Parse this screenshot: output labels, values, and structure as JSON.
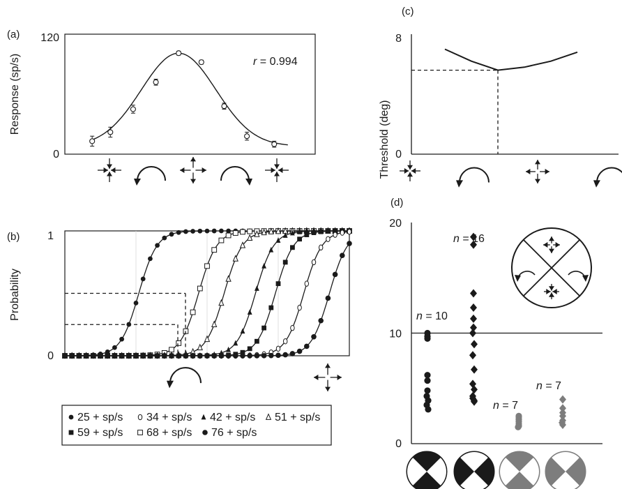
{
  "chart_data": [
    {
      "type": "line",
      "panel_label": "(a)",
      "ylabel": "Response (sp/s)",
      "ylim": [
        0,
        120
      ],
      "yticks": [
        "0",
        "120"
      ],
      "annotation": {
        "prefix": "r",
        "text": " = 0.994"
      },
      "x_icons": [
        "contraction",
        "counter-clockwise rotation",
        "expansion",
        "clockwise rotation",
        "contraction"
      ],
      "x": [
        0.5,
        1,
        1.5,
        2,
        2.5,
        3,
        3.5,
        4,
        4.5,
        5,
        5.5
      ],
      "series": [
        {
          "kind": "points",
          "x": [
            1.1,
            1.5,
            2,
            2.5,
            3,
            3.5,
            4,
            4.5,
            5.1
          ],
          "y": [
            13,
            22,
            45,
            72,
            101,
            92,
            48,
            18,
            10
          ],
          "err": [
            5,
            5,
            4,
            3,
            2,
            2,
            3,
            4,
            3
          ]
        },
        {
          "kind": "fit",
          "peak_x": 3,
          "peak_y": 101,
          "baseline": 8,
          "sigma": 0.82
        }
      ]
    },
    {
      "type": "line",
      "panel_label": "(b)",
      "ylabel": "Probability",
      "ylim": [
        0,
        1
      ],
      "yticks": [
        "0",
        "1"
      ],
      "x_icons": [
        "counter-clockwise rotation",
        "expansion"
      ],
      "series": [
        {
          "name": "25 + sp/s",
          "marker": "filled-circle",
          "midpoint": 0.26
        },
        {
          "name": "34 + sp/s",
          "marker": "open-circle",
          "midpoint": 0.84
        },
        {
          "name": "42 + sp/s",
          "marker": "filled-triangle",
          "midpoint": 0.67
        },
        {
          "name": "51 + sp/s",
          "marker": "open-triangle",
          "midpoint": 0.56
        },
        {
          "name": "59 + sp/s",
          "marker": "filled-square",
          "midpoint": 0.74
        },
        {
          "name": "68 + sp/s",
          "marker": "open-square",
          "midpoint": 0.47
        },
        {
          "name": "76 + sp/s",
          "marker": "filled-hexagon",
          "midpoint": 0.93
        }
      ],
      "guides_y": [
        0.5,
        0.25
      ]
    },
    {
      "type": "line",
      "panel_label": "(c)",
      "ylim": [
        0,
        8
      ],
      "yticks": [
        "0",
        "8"
      ],
      "x_icons": [
        "contraction",
        "counter-clockwise rotation",
        "expansion",
        "counter-clockwise rotation"
      ],
      "series": [
        {
          "x": [
            0.27,
            0.32,
            0.37,
            0.42,
            0.47,
            0.52
          ],
          "y": [
            7.0,
            6.2,
            5.6,
            5.8,
            6.2,
            6.8
          ]
        }
      ],
      "threshold_marker": {
        "x": 0.37,
        "y": 5.6
      }
    },
    {
      "type": "scatter",
      "panel_label": "(d)",
      "ylabel": "Threshold (deg)",
      "ylim": [
        0,
        20
      ],
      "yticks": [
        "0",
        "10",
        "20"
      ],
      "reference_line_y": 10,
      "series": [
        {
          "category": 1,
          "marker": "circle",
          "color": "#1a1a1a",
          "count_label": "n = 10",
          "values": [
            10.0,
            9.7,
            9.5,
            6.2,
            5.7,
            4.8,
            4.3,
            3.9,
            3.5,
            3.1
          ]
        },
        {
          "category": 2,
          "marker": "diamond",
          "color": "#1a1a1a",
          "count_label": "n = 16",
          "values": [
            18.7,
            18.0,
            13.6,
            12.3,
            11.3,
            10.5,
            10.0,
            9.0,
            8.0,
            6.7,
            5.4,
            4.9,
            4.3,
            3.9,
            4.1,
            3.8
          ]
        },
        {
          "category": 3,
          "marker": "circle",
          "color": "#7d7d7d",
          "count_label": "n = 7",
          "values": [
            2.4,
            2.2,
            2.0,
            1.8,
            1.6,
            2.5,
            1.5
          ]
        },
        {
          "category": 4,
          "marker": "diamond",
          "color": "#7d7d7d",
          "count_label": "n = 7",
          "values": [
            4.0,
            3.2,
            2.5,
            2.1,
            1.7,
            2.8,
            1.9
          ]
        }
      ]
    }
  ],
  "legend_b": {
    "labels": [
      "25 + sp/s",
      "34 + sp/s",
      "42 + sp/s",
      "51 + sp/s",
      "59 + sp/s",
      "68 + sp/s",
      "76 + sp/s"
    ]
  },
  "colors": {
    "ink": "#1a1a1a",
    "gray": "#7d7d7d",
    "white": "#ffffff"
  }
}
